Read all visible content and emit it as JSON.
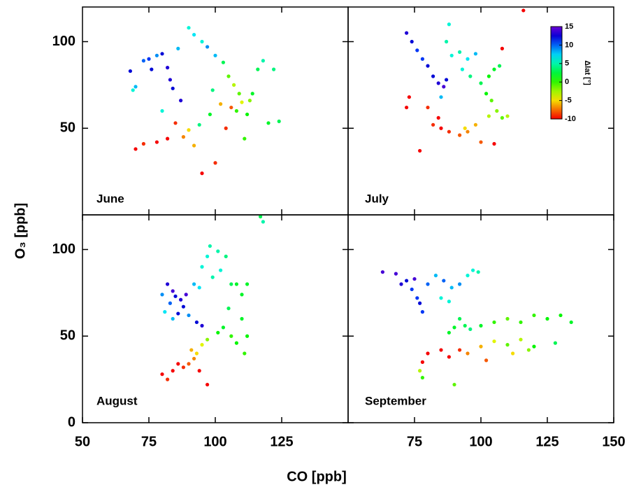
{
  "shared": {
    "xlabel": "CO [ppb]",
    "ylabel": "O₃ [ppb]",
    "colorbar": {
      "label": "Δlat [°]",
      "lim": [
        -10,
        15
      ],
      "ticks": [
        15,
        10,
        5,
        0,
        -5,
        -10
      ]
    }
  },
  "chart_data": [
    {
      "type": "scatter",
      "label": "June",
      "xlim": [
        50,
        150
      ],
      "ylim": [
        0,
        120
      ],
      "xticks": [
        75,
        100,
        125
      ],
      "yticks": [
        50,
        100
      ],
      "show_xtick_labels": false,
      "show_ytick_labels": true,
      "x": [
        68,
        70,
        69,
        73,
        75,
        78,
        80,
        82,
        83,
        84,
        87,
        86,
        90,
        92,
        95,
        97,
        100,
        103,
        105,
        107,
        109,
        110,
        108,
        112,
        114,
        116,
        118,
        122,
        120,
        124,
        111,
        102,
        98,
        94,
        90,
        88,
        92,
        85,
        82,
        78,
        73,
        70,
        95,
        100,
        104,
        106,
        113,
        80,
        76,
        99
      ],
      "y": [
        83,
        74,
        72,
        89,
        90,
        92,
        93,
        85,
        78,
        73,
        66,
        96,
        108,
        104,
        100,
        97,
        92,
        88,
        80,
        75,
        70,
        65,
        60,
        58,
        70,
        84,
        89,
        84,
        53,
        54,
        44,
        64,
        58,
        52,
        49,
        45,
        40,
        53,
        44,
        42,
        41,
        38,
        24,
        30,
        50,
        62,
        66,
        60,
        84,
        72
      ],
      "c": [
        12,
        8,
        6,
        10,
        11,
        9,
        12,
        13,
        13,
        12,
        13,
        8,
        6,
        7,
        6,
        9,
        8,
        3,
        -1,
        -3,
        -1,
        -4,
        0,
        1,
        2,
        3,
        5,
        4,
        2,
        3,
        0,
        -6,
        2,
        4,
        -5,
        -7,
        -6,
        -9,
        -10,
        -10,
        -9,
        -10,
        -10,
        -9,
        -9,
        -8,
        -2,
        6,
        12,
        4
      ]
    },
    {
      "type": "scatter",
      "label": "July",
      "xlim": [
        50,
        150
      ],
      "ylim": [
        0,
        120
      ],
      "xticks": [
        75,
        100,
        125
      ],
      "yticks": [
        50,
        100
      ],
      "show_xtick_labels": false,
      "show_ytick_labels": false,
      "x": [
        72,
        74,
        76,
        78,
        80,
        82,
        84,
        86,
        87,
        85,
        88,
        87,
        89,
        92,
        95,
        98,
        93,
        96,
        100,
        103,
        105,
        107,
        102,
        104,
        106,
        103,
        108,
        110,
        98,
        95,
        92,
        88,
        85,
        84,
        82,
        80,
        72,
        73,
        77,
        105,
        100,
        116,
        108,
        94
      ],
      "y": [
        105,
        100,
        95,
        90,
        86,
        80,
        76,
        74,
        78,
        68,
        110,
        100,
        92,
        94,
        90,
        93,
        84,
        80,
        76,
        80,
        84,
        86,
        70,
        66,
        60,
        57,
        56,
        57,
        52,
        48,
        46,
        48,
        50,
        56,
        52,
        62,
        62,
        68,
        37,
        41,
        42,
        118,
        96,
        50
      ],
      "c": [
        13,
        12,
        11,
        11,
        12,
        12,
        13,
        14,
        12,
        8,
        6,
        5,
        6,
        5,
        7,
        8,
        6,
        4,
        3,
        1,
        2,
        3,
        1,
        -1,
        -2,
        -3,
        -1,
        -3,
        -6,
        -7,
        -8,
        -9,
        -10,
        -10,
        -9,
        -9,
        -10,
        -10,
        -10,
        -10,
        -8,
        -10,
        -10,
        -5
      ]
    },
    {
      "type": "scatter",
      "label": "August",
      "xlim": [
        50,
        150
      ],
      "ylim": [
        0,
        120
      ],
      "xticks": [
        {
          "value": 50,
          "label": "50"
        },
        75,
        100,
        125
      ],
      "yticks": [
        0,
        50,
        100
      ],
      "show_xtick_labels": true,
      "show_ytick_labels": true,
      "x": [
        82,
        84,
        85,
        87,
        89,
        88,
        86,
        83,
        80,
        81,
        84,
        90,
        93,
        95,
        92,
        94,
        95,
        97,
        98,
        101,
        104,
        102,
        99,
        106,
        108,
        112,
        110,
        105,
        103,
        101,
        106,
        108,
        111,
        110,
        112,
        117,
        118,
        97,
        95,
        93,
        92,
        90,
        88,
        86,
        84,
        80,
        82,
        94,
        97,
        91
      ],
      "y": [
        80,
        76,
        73,
        71,
        74,
        67,
        63,
        69,
        74,
        64,
        60,
        62,
        58,
        56,
        80,
        78,
        90,
        96,
        102,
        99,
        96,
        88,
        84,
        80,
        80,
        80,
        74,
        66,
        55,
        52,
        50,
        46,
        40,
        60,
        50,
        119,
        116,
        48,
        45,
        40,
        37,
        34,
        32,
        34,
        30,
        28,
        25,
        30,
        22,
        42
      ],
      "c": [
        13,
        14,
        12,
        13,
        14,
        12,
        12,
        10,
        9,
        7,
        8,
        9,
        12,
        13,
        8,
        7,
        6,
        6,
        5,
        5,
        4,
        6,
        5,
        3,
        2,
        2,
        2,
        3,
        2,
        1,
        0,
        1,
        0,
        2,
        1,
        3,
        5,
        -2,
        -4,
        -5,
        -7,
        -8,
        -9,
        -10,
        -10,
        -10,
        -9,
        -10,
        -10,
        -6
      ]
    },
    {
      "type": "scatter",
      "label": "September",
      "xlim": [
        50,
        150
      ],
      "ylim": [
        0,
        120
      ],
      "xticks": [
        75,
        100,
        125,
        150
      ],
      "yticks": [
        0,
        50,
        100
      ],
      "show_xtick_labels": true,
      "show_ytick_labels": false,
      "x": [
        63,
        68,
        70,
        72,
        75,
        74,
        76,
        77,
        78,
        80,
        83,
        86,
        89,
        92,
        95,
        97,
        99,
        85,
        88,
        92,
        90,
        88,
        94,
        96,
        100,
        105,
        110,
        115,
        120,
        125,
        130,
        134,
        128,
        120,
        115,
        110,
        105,
        100,
        95,
        92,
        88,
        85,
        80,
        78,
        77,
        78,
        90,
        102,
        112,
        118
      ],
      "y": [
        87,
        86,
        80,
        82,
        83,
        77,
        72,
        69,
        64,
        80,
        85,
        82,
        78,
        80,
        85,
        88,
        87,
        72,
        70,
        60,
        55,
        52,
        56,
        54,
        56,
        58,
        60,
        58,
        62,
        60,
        62,
        58,
        46,
        44,
        48,
        45,
        47,
        44,
        40,
        42,
        38,
        42,
        40,
        35,
        30,
        26,
        22,
        36,
        40,
        42
      ],
      "c": [
        14,
        14,
        13,
        12,
        14,
        11,
        11,
        12,
        11,
        10,
        8,
        10,
        8,
        9,
        6,
        6,
        5,
        6,
        6,
        3,
        2,
        2,
        3,
        4,
        2,
        0,
        -1,
        0,
        0,
        1,
        1,
        2,
        3,
        1,
        -3,
        -1,
        -4,
        -6,
        -7,
        -9,
        -10,
        -10,
        -10,
        -10,
        -3,
        0,
        -1,
        -8,
        -5,
        -2
      ]
    }
  ]
}
